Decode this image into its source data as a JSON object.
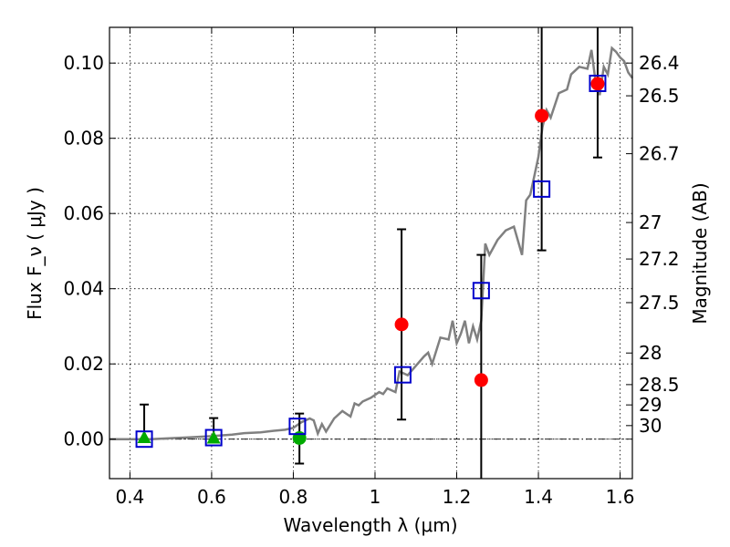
{
  "chart_data": {
    "type": "scatter",
    "xlabel": "Wavelength λ (μm)",
    "ylabel": "Flux F_ν ( μJy )",
    "ylabel_right": "Magnitude (AB)",
    "xlim": [
      0.35,
      1.63
    ],
    "ylim": [
      -0.0105,
      0.1095
    ],
    "grid": true,
    "x_ticks": [
      0.4,
      0.6,
      0.8,
      1.0,
      1.2,
      1.4,
      1.6
    ],
    "x_tick_labels": [
      "0.4",
      "0.6",
      "0.8",
      "1",
      "1.2",
      "1.4",
      "1.6"
    ],
    "y_ticks": [
      0.0,
      0.02,
      0.04,
      0.06,
      0.08,
      0.1
    ],
    "y_tick_labels": [
      "0.00",
      "0.02",
      "0.04",
      "0.06",
      "0.08",
      "0.10"
    ],
    "right_ticks": [
      {
        "label": "26.4",
        "flux": 0.1
      },
      {
        "label": "26.5",
        "flux": 0.0913
      },
      {
        "label": "26.7",
        "flux": 0.0759
      },
      {
        "label": "27",
        "flux": 0.0576
      },
      {
        "label": "27.2",
        "flux": 0.0479
      },
      {
        "label": "27.5",
        "flux": 0.0363
      },
      {
        "label": "28",
        "flux": 0.0229
      },
      {
        "label": "28.5",
        "flux": 0.0145
      },
      {
        "label": "29",
        "flux": 0.0091
      },
      {
        "label": "30",
        "flux": 0.0036
      }
    ],
    "series": [
      {
        "name": "model spectrum",
        "style": "line",
        "color": "#808080",
        "x": [
          0.35,
          0.45,
          0.55,
          0.6,
          0.65,
          0.68,
          0.72,
          0.75,
          0.78,
          0.8,
          0.82,
          0.84,
          0.85,
          0.86,
          0.87,
          0.88,
          0.9,
          0.92,
          0.94,
          0.95,
          0.96,
          0.97,
          0.99,
          1.01,
          1.02,
          1.03,
          1.05,
          1.06,
          1.07,
          1.08,
          1.1,
          1.12,
          1.13,
          1.14,
          1.16,
          1.18,
          1.19,
          1.2,
          1.21,
          1.22,
          1.23,
          1.24,
          1.25,
          1.26,
          1.27,
          1.28,
          1.3,
          1.32,
          1.34,
          1.36,
          1.37,
          1.38,
          1.39,
          1.4,
          1.41,
          1.42,
          1.43,
          1.45,
          1.47,
          1.48,
          1.5,
          1.52,
          1.53,
          1.54,
          1.55,
          1.56,
          1.57,
          1.58,
          1.59,
          1.6,
          1.61,
          1.62,
          1.63
        ],
        "y": [
          0.0,
          0.0,
          0.0005,
          0.0008,
          0.0012,
          0.0016,
          0.0018,
          0.0022,
          0.0025,
          0.003,
          0.0045,
          0.0055,
          0.005,
          0.0015,
          0.004,
          0.002,
          0.0055,
          0.0075,
          0.006,
          0.0095,
          0.009,
          0.01,
          0.011,
          0.0125,
          0.012,
          0.0135,
          0.0125,
          0.018,
          0.0175,
          0.017,
          0.0195,
          0.022,
          0.023,
          0.02,
          0.027,
          0.0265,
          0.0315,
          0.0255,
          0.028,
          0.0315,
          0.0255,
          0.03,
          0.0265,
          0.0315,
          0.052,
          0.049,
          0.053,
          0.0555,
          0.0565,
          0.049,
          0.0635,
          0.065,
          0.07,
          0.075,
          0.083,
          0.0875,
          0.0855,
          0.092,
          0.093,
          0.097,
          0.099,
          0.0985,
          0.1035,
          0.095,
          0.0915,
          0.099,
          0.097,
          0.104,
          0.103,
          0.1015,
          0.1005,
          0.0975,
          0.096
        ]
      },
      {
        "name": "green triangles",
        "style": "marker",
        "marker": "triangle",
        "color": "#00aa00",
        "points": [
          {
            "x": 0.435,
            "y": 0.0004,
            "yerr_low": 0.0,
            "yerr_high": 0.0092
          },
          {
            "x": 0.605,
            "y": 0.0003,
            "yerr_low": 0.0,
            "yerr_high": 0.0056
          }
        ]
      },
      {
        "name": "green circles",
        "style": "marker",
        "marker": "circle",
        "color": "#00aa00",
        "points": [
          {
            "x": 0.815,
            "y": 0.0003,
            "yerr_low": -0.0065,
            "yerr_high": 0.0068
          }
        ]
      },
      {
        "name": "red circles",
        "style": "marker",
        "marker": "circle",
        "color": "#ff0000",
        "points": [
          {
            "x": 1.065,
            "y": 0.0305,
            "yerr_low": 0.0052,
            "yerr_high": 0.0558
          },
          {
            "x": 1.26,
            "y": 0.0157,
            "yerr_low": -0.0105,
            "yerr_high": 0.049
          },
          {
            "x": 1.408,
            "y": 0.086,
            "yerr_low": 0.0502,
            "yerr_high": 0.1095
          },
          {
            "x": 1.545,
            "y": 0.0945,
            "yerr_low": 0.0749,
            "yerr_high": 0.1095
          }
        ]
      },
      {
        "name": "blue squares",
        "style": "marker",
        "marker": "square",
        "color": "#0000cc",
        "points": [
          {
            "x": 0.435,
            "y": 0.0
          },
          {
            "x": 0.605,
            "y": 0.0004
          },
          {
            "x": 0.81,
            "y": 0.0034
          },
          {
            "x": 1.068,
            "y": 0.0171
          },
          {
            "x": 1.26,
            "y": 0.0395
          },
          {
            "x": 1.408,
            "y": 0.0665
          },
          {
            "x": 1.545,
            "y": 0.0946
          }
        ]
      }
    ],
    "zero_line": {
      "y": 0.0,
      "style": "dash-dot"
    }
  }
}
